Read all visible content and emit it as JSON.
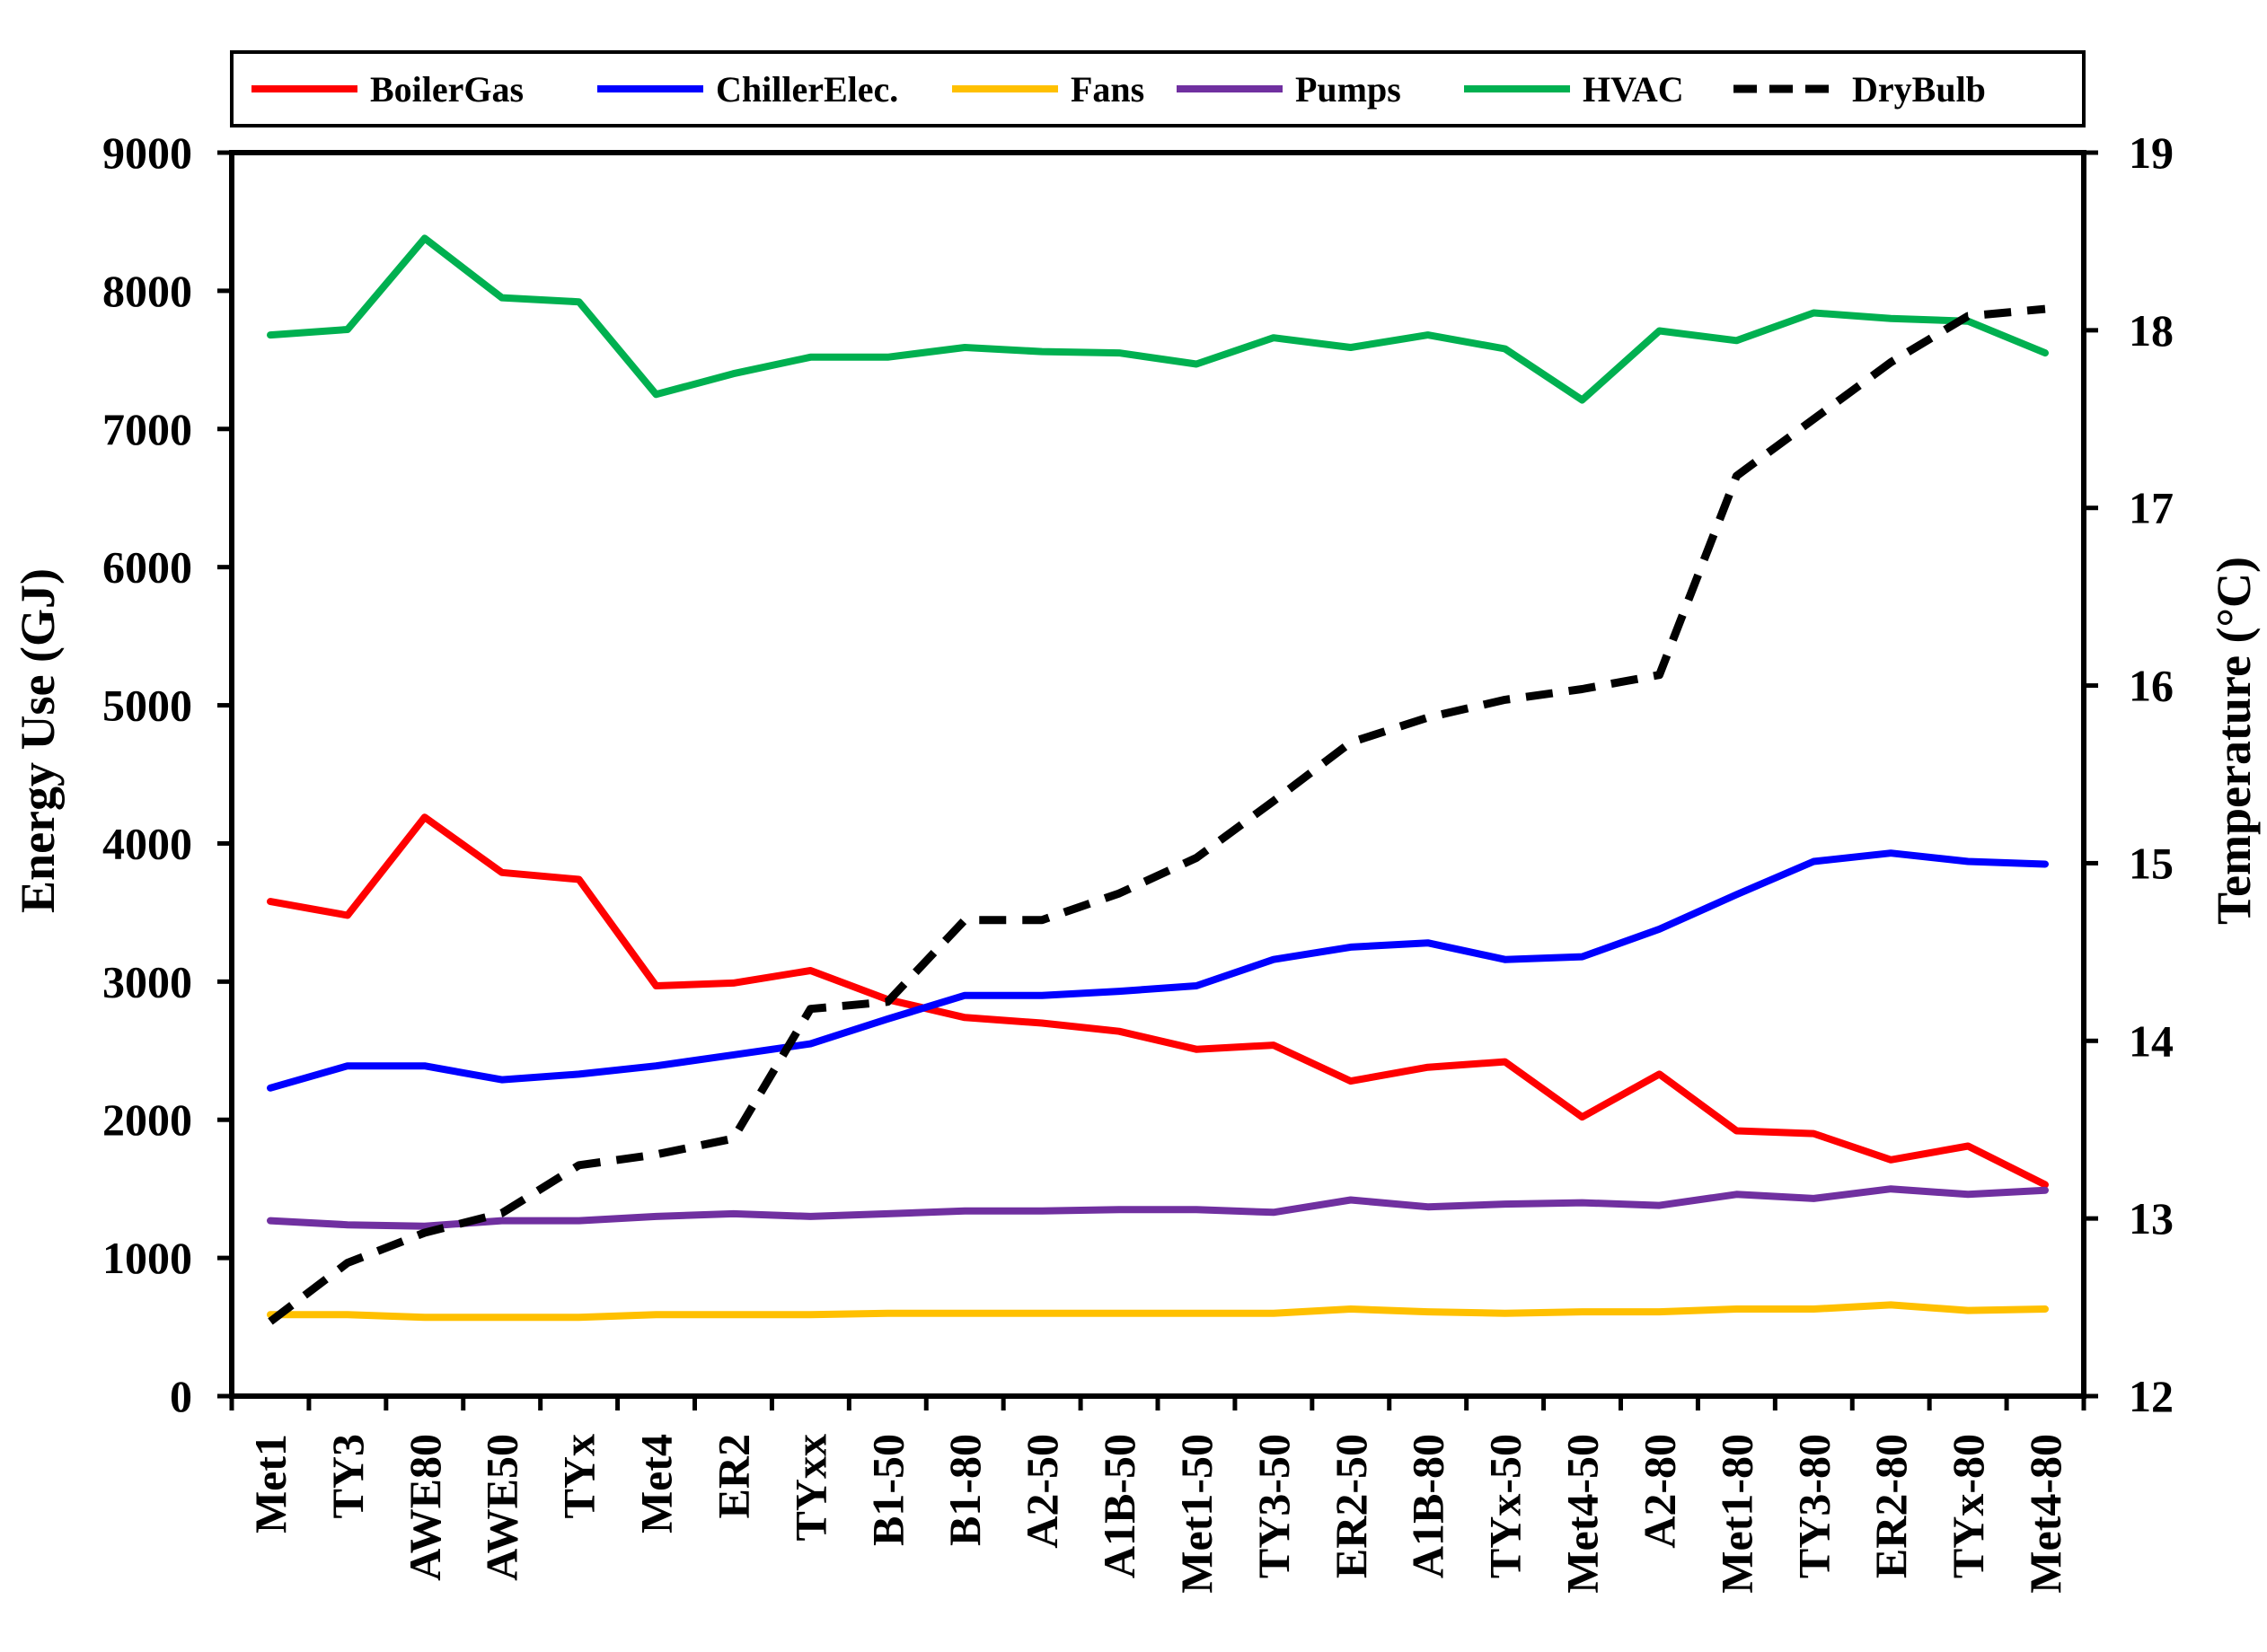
{
  "chart_data": {
    "type": "line",
    "title": "",
    "xlabel": "",
    "ylabel": "Energy Use (GJ)",
    "y2label": "Temperature (°C)",
    "ylim": [
      0,
      9000
    ],
    "y2lim": [
      12,
      19
    ],
    "yticks": [
      0,
      1000,
      2000,
      3000,
      4000,
      5000,
      6000,
      7000,
      8000,
      9000
    ],
    "y2ticks": [
      12,
      13,
      14,
      15,
      16,
      17,
      18,
      19
    ],
    "legend_position": "top",
    "categories": [
      "Met1",
      "TY3",
      "AWE80",
      "AWE50",
      "TYx",
      "Met4",
      "ER2",
      "TYxx",
      "B1-50",
      "B1-80",
      "A2-50",
      "A1B-50",
      "Met1-50",
      "TY3-50",
      "ER2-50",
      "A1B-80",
      "TYx-50",
      "Met4-50",
      "A2-80",
      "Met1-80",
      "TY3-80",
      "ER2-80",
      "TYx-80",
      "Met4-80"
    ],
    "series": [
      {
        "name": "BoilerGas",
        "axis": "left",
        "color": "#ff0000",
        "dash": false,
        "values": [
          3580,
          3480,
          4190,
          3790,
          3740,
          2970,
          2990,
          3080,
          2870,
          2740,
          2700,
          2640,
          2510,
          2540,
          2280,
          2380,
          2420,
          2020,
          2330,
          1920,
          1900,
          1710,
          1810,
          1530
        ]
      },
      {
        "name": "ChillerElec.",
        "axis": "left",
        "color": "#0000ff",
        "dash": false,
        "values": [
          2230,
          2390,
          2390,
          2290,
          2330,
          2390,
          2470,
          2550,
          2730,
          2900,
          2900,
          2930,
          2970,
          3160,
          3250,
          3280,
          3160,
          3180,
          3380,
          3630,
          3870,
          3930,
          3870,
          3850
        ]
      },
      {
        "name": "Fans",
        "axis": "left",
        "color": "#ffc000",
        "dash": false,
        "values": [
          590,
          590,
          570,
          570,
          570,
          590,
          590,
          590,
          600,
          600,
          600,
          600,
          600,
          600,
          630,
          610,
          600,
          610,
          610,
          630,
          630,
          660,
          620,
          630
        ]
      },
      {
        "name": "Pumps",
        "axis": "left",
        "color": "#7030a0",
        "dash": false,
        "values": [
          1270,
          1240,
          1230,
          1270,
          1270,
          1300,
          1320,
          1300,
          1320,
          1340,
          1340,
          1350,
          1350,
          1330,
          1420,
          1370,
          1390,
          1400,
          1380,
          1460,
          1430,
          1500,
          1460,
          1490
        ]
      },
      {
        "name": "HVAC",
        "axis": "left",
        "color": "#00b050",
        "dash": false,
        "values": [
          7680,
          7720,
          8380,
          7950,
          7920,
          7250,
          7400,
          7520,
          7520,
          7590,
          7560,
          7550,
          7470,
          7660,
          7590,
          7680,
          7580,
          7210,
          7710,
          7640,
          7840,
          7800,
          7780,
          7550
        ]
      },
      {
        "name": "DryBulb",
        "axis": "right",
        "color": "#000000",
        "dash": true,
        "values": [
          12.42,
          12.75,
          12.92,
          13.03,
          13.3,
          13.36,
          13.45,
          14.18,
          14.22,
          14.68,
          14.68,
          14.83,
          15.03,
          15.35,
          15.68,
          15.82,
          15.92,
          15.98,
          16.06,
          17.18,
          17.5,
          17.82,
          18.08,
          18.12
        ]
      }
    ]
  }
}
